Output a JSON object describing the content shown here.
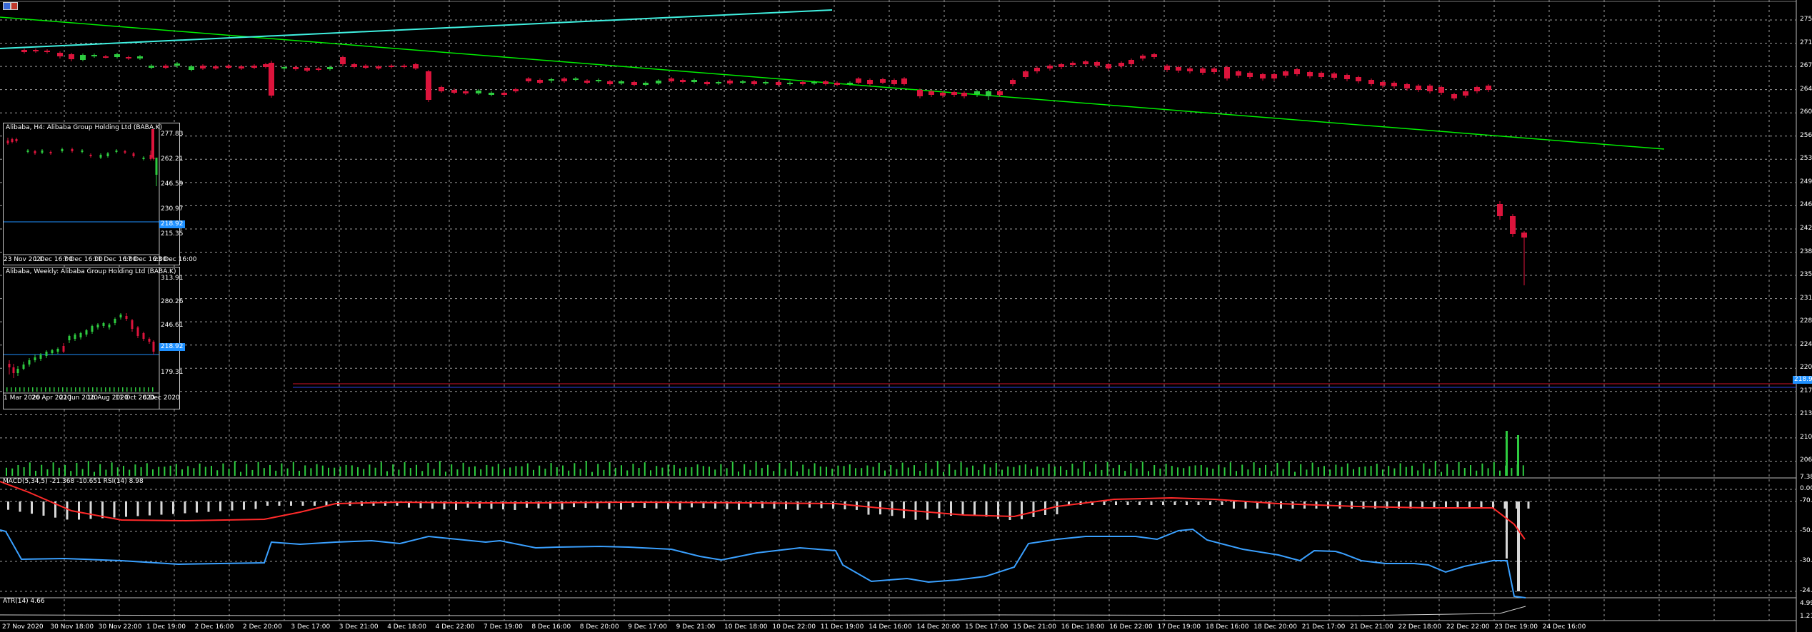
{
  "colors": {
    "up": "#2ecc40",
    "down": "#dc143c",
    "grid": "#9a9a9a",
    "bid": "#d0102a",
    "ask": "#3040e0",
    "macd_hist": "#d8d8d8",
    "signal": "#ff2a2a",
    "rsi": "#3aa0ff",
    "trend": "#00ee00",
    "trend2": "#40f0e0"
  },
  "toolbar": {
    "icon": "chart-window-icon"
  },
  "price_axis": [
    "275.05",
    "271.43",
    "267.82",
    "264.21",
    "260.60",
    "256.99",
    "253.38",
    "249.77",
    "246.15",
    "242.55",
    "238.94",
    "235.33",
    "231.72",
    "228.11",
    "224.50",
    "220.89",
    "217.28",
    "213.67",
    "210.06",
    "206.45"
  ],
  "current_price": "218.92",
  "time_axis": [
    "27 Nov 2020",
    "30 Nov 18:00",
    "30 Nov 22:00",
    "1 Dec 19:00",
    "2 Dec 16:00",
    "2 Dec 20:00",
    "3 Dec 17:00",
    "3 Dec 21:00",
    "4 Dec 18:00",
    "4 Dec 22:00",
    "7 Dec 19:00",
    "8 Dec 16:00",
    "8 Dec 20:00",
    "9 Dec 17:00",
    "9 Dec 21:00",
    "10 Dec 18:00",
    "10 Dec 22:00",
    "11 Dec 19:00",
    "14 Dec 16:00",
    "14 Dec 20:00",
    "15 Dec 17:00",
    "15 Dec 21:00",
    "16 Dec 18:00",
    "16 Dec 22:00",
    "17 Dec 19:00",
    "18 Dec 16:00",
    "18 Dec 20:00",
    "21 Dec 17:00",
    "21 Dec 21:00",
    "22 Dec 18:00",
    "22 Dec 22:00",
    "23 Dec 19:00",
    "24 Dec 16:00"
  ],
  "macd": {
    "label": "MACD(5,34,5) -21.368 -10.651 RSI(14) 8.98",
    "axis": [
      "7.385",
      "0.000",
      "-70.00",
      "-50.00",
      "-30.00",
      "-24.100"
    ]
  },
  "atr": {
    "label": "ATR(14) 4.66",
    "axis": [
      "4.99",
      "1.21"
    ]
  },
  "panel_h4": {
    "title": "Alibaba, H4:  Alibaba Group Holding Ltd (BABA.K)",
    "price_axis": [
      "277.83",
      "262.21",
      "246.59",
      "230.97",
      "215.35"
    ],
    "current_price": "218.92",
    "time_axis": [
      "23 Nov 2020",
      "1 Dec 16:00",
      "7 Dec 16:00",
      "11 Dec 16:00",
      "17 Dec 16:00",
      "23 Dec 16:00"
    ]
  },
  "panel_weekly": {
    "title": "Alibaba, Weekly:  Alibaba Group Holding Ltd (BABA.K)",
    "price_axis": [
      "313.91",
      "280.26",
      "246.61",
      "212.96",
      "179.31"
    ],
    "current_price": "218.92",
    "time_axis": [
      "1 Mar 2020",
      "26 Apr 2020",
      "21 Jun 2020",
      "16 Aug 2020",
      "11 Oct 2020",
      "6 Dec 2020"
    ]
  }
}
